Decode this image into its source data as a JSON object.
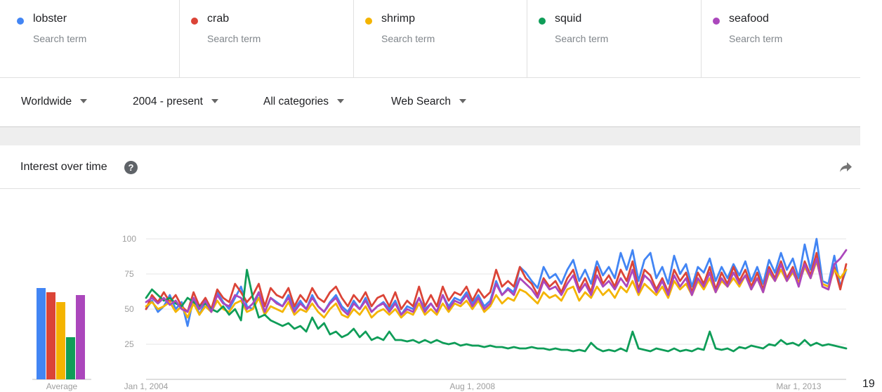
{
  "terms": [
    {
      "name": "lobster",
      "sub": "Search term",
      "color": "#4285f4"
    },
    {
      "name": "crab",
      "sub": "Search term",
      "color": "#db4437"
    },
    {
      "name": "shrimp",
      "sub": "Search term",
      "color": "#f4b400"
    },
    {
      "name": "squid",
      "sub": "Search term",
      "color": "#0f9d58"
    },
    {
      "name": "seafood",
      "sub": "Search term",
      "color": "#ab47bc"
    }
  ],
  "filters": {
    "region": "Worldwide",
    "time": "2004 - present",
    "category": "All categories",
    "search_type": "Web Search"
  },
  "section": {
    "title": "Interest over time",
    "help_icon": "help-icon",
    "share_icon": "share-icon"
  },
  "edge_text": "19",
  "chart_data": {
    "type": "line",
    "ylim": [
      0,
      100
    ],
    "yticks": [
      "25",
      "50",
      "75",
      "100"
    ],
    "xtick_labels": [
      "Jan 1, 2004",
      "Aug 1, 2008",
      "Mar 1, 2013"
    ],
    "average_label": "Average",
    "averages": [
      {
        "name": "lobster",
        "value": 65
      },
      {
        "name": "crab",
        "value": 62
      },
      {
        "name": "shrimp",
        "value": 55
      },
      {
        "name": "squid",
        "value": 30
      },
      {
        "name": "seafood",
        "value": 60
      }
    ],
    "series": [
      {
        "name": "lobster",
        "color": "#4285f4",
        "values": [
          50,
          56,
          48,
          52,
          60,
          50,
          55,
          38,
          58,
          46,
          55,
          48,
          62,
          55,
          50,
          58,
          66,
          52,
          50,
          62,
          48,
          58,
          55,
          52,
          60,
          50,
          56,
          50,
          60,
          52,
          48,
          55,
          60,
          52,
          48,
          56,
          50,
          58,
          48,
          52,
          55,
          50,
          56,
          46,
          52,
          50,
          58,
          50,
          54,
          48,
          60,
          52,
          58,
          56,
          62,
          54,
          60,
          52,
          56,
          70,
          60,
          65,
          62,
          80,
          76,
          70,
          65,
          80,
          72,
          75,
          68,
          78,
          85,
          70,
          78,
          68,
          84,
          74,
          80,
          72,
          90,
          78,
          92,
          70,
          85,
          90,
          72,
          80,
          68,
          88,
          75,
          82,
          66,
          80,
          76,
          86,
          70,
          80,
          72,
          82,
          74,
          84,
          70,
          80,
          68,
          85,
          76,
          90,
          78,
          86,
          72,
          96,
          78,
          100,
          70,
          68,
          88,
          66,
          78
        ]
      },
      {
        "name": "crab",
        "color": "#db4437",
        "values": [
          50,
          60,
          55,
          62,
          55,
          60,
          52,
          48,
          62,
          52,
          58,
          50,
          64,
          58,
          55,
          68,
          62,
          55,
          60,
          68,
          52,
          65,
          60,
          58,
          65,
          52,
          60,
          55,
          65,
          58,
          55,
          62,
          66,
          58,
          52,
          60,
          55,
          62,
          52,
          58,
          60,
          52,
          62,
          50,
          56,
          52,
          66,
          52,
          60,
          52,
          66,
          56,
          62,
          60,
          66,
          56,
          64,
          58,
          62,
          78,
          66,
          70,
          66,
          80,
          72,
          68,
          60,
          72,
          66,
          70,
          62,
          72,
          78,
          64,
          72,
          62,
          80,
          68,
          74,
          66,
          78,
          70,
          84,
          64,
          78,
          74,
          64,
          72,
          62,
          78,
          70,
          76,
          62,
          76,
          68,
          80,
          64,
          76,
          68,
          80,
          70,
          78,
          66,
          76,
          64,
          80,
          72,
          84,
          72,
          80,
          68,
          84,
          74,
          90,
          66,
          64,
          80,
          64,
          82
        ]
      },
      {
        "name": "shrimp",
        "color": "#f4b400",
        "values": [
          52,
          55,
          50,
          52,
          55,
          48,
          52,
          44,
          54,
          46,
          52,
          48,
          56,
          50,
          48,
          54,
          56,
          48,
          50,
          58,
          46,
          52,
          50,
          48,
          55,
          46,
          50,
          48,
          54,
          48,
          44,
          50,
          54,
          46,
          44,
          50,
          46,
          52,
          44,
          48,
          50,
          46,
          50,
          44,
          48,
          46,
          54,
          46,
          50,
          46,
          54,
          48,
          54,
          52,
          56,
          50,
          56,
          48,
          52,
          60,
          54,
          58,
          56,
          64,
          62,
          58,
          54,
          62,
          58,
          60,
          56,
          64,
          66,
          56,
          62,
          58,
          66,
          60,
          64,
          58,
          66,
          62,
          70,
          60,
          68,
          64,
          60,
          66,
          58,
          70,
          64,
          68,
          60,
          70,
          64,
          72,
          62,
          70,
          66,
          72,
          66,
          74,
          64,
          72,
          62,
          76,
          70,
          78,
          70,
          76,
          68,
          80,
          72,
          84,
          68,
          66,
          78,
          72,
          78
        ]
      },
      {
        "name": "squid",
        "color": "#0f9d58",
        "values": [
          58,
          64,
          60,
          56,
          58,
          54,
          52,
          58,
          55,
          52,
          54,
          50,
          48,
          52,
          46,
          50,
          42,
          78,
          58,
          44,
          46,
          42,
          40,
          38,
          40,
          36,
          38,
          34,
          44,
          36,
          40,
          32,
          34,
          30,
          32,
          36,
          30,
          34,
          28,
          30,
          28,
          34,
          28,
          28,
          27,
          28,
          26,
          28,
          26,
          28,
          26,
          25,
          26,
          24,
          25,
          24,
          24,
          23,
          24,
          23,
          23,
          22,
          23,
          22,
          22,
          23,
          22,
          22,
          21,
          22,
          21,
          21,
          20,
          21,
          20,
          26,
          22,
          20,
          21,
          20,
          22,
          20,
          34,
          22,
          21,
          20,
          22,
          21,
          20,
          22,
          20,
          21,
          20,
          22,
          21,
          34,
          22,
          21,
          22,
          20,
          23,
          22,
          24,
          23,
          22,
          25,
          24,
          28,
          25,
          26,
          24,
          28,
          24,
          26,
          24,
          25,
          24,
          23,
          22
        ]
      },
      {
        "name": "seafood",
        "color": "#ab47bc",
        "values": [
          55,
          58,
          54,
          58,
          53,
          56,
          50,
          48,
          58,
          50,
          56,
          48,
          60,
          54,
          52,
          60,
          58,
          50,
          54,
          62,
          48,
          58,
          54,
          52,
          58,
          48,
          54,
          50,
          58,
          52,
          48,
          54,
          58,
          50,
          46,
          54,
          50,
          56,
          48,
          52,
          54,
          48,
          54,
          46,
          50,
          48,
          58,
          48,
          54,
          48,
          60,
          50,
          56,
          54,
          60,
          52,
          58,
          50,
          54,
          68,
          60,
          64,
          60,
          72,
          68,
          64,
          58,
          70,
          64,
          66,
          60,
          68,
          74,
          62,
          68,
          60,
          74,
          66,
          70,
          64,
          72,
          66,
          78,
          62,
          74,
          70,
          62,
          70,
          60,
          74,
          66,
          72,
          60,
          72,
          66,
          76,
          62,
          72,
          66,
          76,
          68,
          74,
          64,
          72,
          62,
          78,
          70,
          82,
          70,
          78,
          66,
          82,
          72,
          86,
          66,
          64,
          82,
          86,
          92
        ]
      }
    ]
  }
}
